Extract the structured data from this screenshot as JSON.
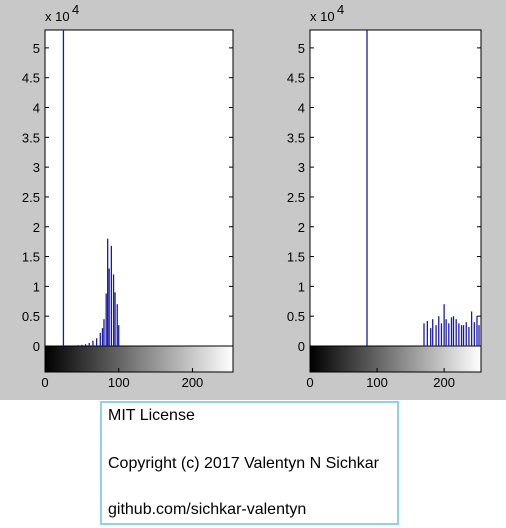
{
  "figure": {
    "background": "#c8c8c8",
    "bar_color": "#1a1aa6"
  },
  "chart_data": [
    {
      "type": "bar",
      "title": "",
      "xlabel": "",
      "ylabel": "",
      "y_scale_label": "x 10",
      "y_scale_exponent": "4",
      "xlim": [
        0,
        255
      ],
      "ylim": [
        0,
        5.3
      ],
      "xticks": [
        "0",
        "100",
        "200"
      ],
      "yticks": [
        "0",
        "0.5",
        "1",
        "1.5",
        "2",
        "2.5",
        "3",
        "3.5",
        "4",
        "4.5",
        "5"
      ],
      "grid": false,
      "colorbar": "grayscale 0-255",
      "series": [
        {
          "x": [
            25,
            40,
            45,
            50,
            55,
            60,
            65,
            70,
            75,
            78,
            80,
            83,
            85,
            87,
            90,
            93,
            95,
            98,
            100
          ],
          "values": [
            5.3,
            0.01,
            0.015,
            0.02,
            0.03,
            0.05,
            0.09,
            0.13,
            0.22,
            0.3,
            0.45,
            0.88,
            1.8,
            1.3,
            1.68,
            1.2,
            0.9,
            0.7,
            0.35
          ]
        }
      ]
    },
    {
      "type": "bar",
      "title": "",
      "xlabel": "",
      "ylabel": "",
      "y_scale_label": "x 10",
      "y_scale_exponent": "4",
      "xlim": [
        0,
        255
      ],
      "ylim": [
        0,
        5.3
      ],
      "xticks": [
        "0",
        "100",
        "200"
      ],
      "yticks": [
        "0",
        "0.5",
        "1",
        "1.5",
        "2",
        "2.5",
        "3",
        "3.5",
        "4",
        "4.5",
        "5"
      ],
      "grid": false,
      "colorbar": "grayscale 0-255",
      "series": [
        {
          "x": [
            85,
            170,
            175,
            180,
            183,
            188,
            192,
            196,
            200,
            203,
            207,
            211,
            214,
            218,
            222,
            226,
            229,
            233,
            237,
            241,
            245,
            249,
            252
          ],
          "values": [
            5.3,
            0.38,
            0.42,
            0.3,
            0.45,
            0.35,
            0.5,
            0.38,
            0.7,
            0.45,
            0.38,
            0.48,
            0.5,
            0.45,
            0.38,
            0.35,
            0.35,
            0.4,
            0.32,
            0.58,
            0.4,
            0.5,
            0.35
          ]
        }
      ]
    }
  ],
  "license": {
    "line1": "MIT License",
    "line2": "Copyright (c) 2017 Valentyn N Sichkar",
    "line3": "github.com/sichkar-valentyn"
  }
}
